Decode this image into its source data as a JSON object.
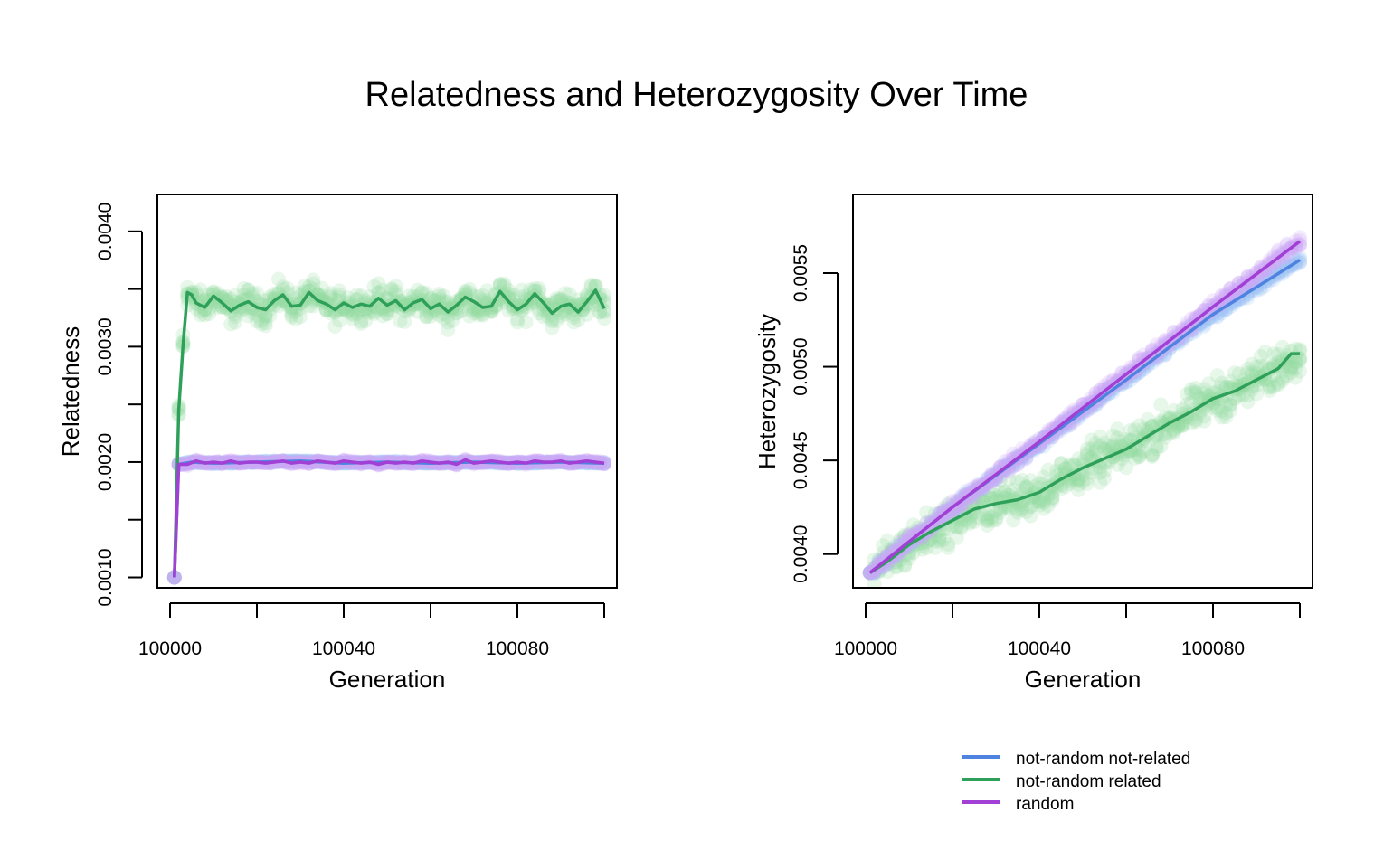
{
  "title": "Relatedness and Heterozygosity Over Time",
  "colors": {
    "not_random_not_related": "#4f83e0",
    "not_random_related": "#2ea05a",
    "random": "#a23fd4",
    "points_not_random_not_related": "#9ec5f5",
    "points_not_random_related": "#93dc9e",
    "points_random": "#cfa8f5"
  },
  "legend": {
    "placement": "bottom-right",
    "items": [
      {
        "label": "not-random not-related",
        "color": "#4f83e0"
      },
      {
        "label": "not-random related",
        "color": "#2ea05a"
      },
      {
        "label": "random",
        "color": "#a23fd4"
      }
    ]
  },
  "chart_data": [
    {
      "type": "line",
      "xlabel": "Generation",
      "ylabel": "Relatedness",
      "xlim": [
        100000,
        100100
      ],
      "ylim": [
        0.00091,
        0.00432
      ],
      "xticks": [
        100000,
        100020,
        100040,
        100060,
        100080,
        100100
      ],
      "xtick_labels": [
        "100000",
        "",
        "100040",
        "",
        "100080",
        ""
      ],
      "yticks": [
        0.001,
        0.0015,
        0.002,
        0.0025,
        0.003,
        0.0035,
        0.004
      ],
      "ytick_labels": [
        "0.0010",
        "",
        "0.0020",
        "",
        "0.0030",
        "",
        "0.0040"
      ],
      "grid": false,
      "series": [
        {
          "name": "not-random related",
          "key": "not_random_related",
          "x": [
            100001,
            100002,
            100003,
            100004,
            100005,
            100006,
            100008,
            100010,
            100012,
            100014,
            100016,
            100018,
            100020,
            100022,
            100024,
            100026,
            100028,
            100030,
            100032,
            100034,
            100036,
            100038,
            100040,
            100042,
            100044,
            100046,
            100048,
            100050,
            100052,
            100054,
            100056,
            100058,
            100060,
            100062,
            100064,
            100066,
            100068,
            100070,
            100072,
            100074,
            100076,
            100078,
            100080,
            100082,
            100084,
            100086,
            100088,
            100090,
            100092,
            100094,
            100096,
            100098,
            100100
          ],
          "y": [
            0.001,
            0.00245,
            0.00302,
            0.00347,
            0.00345,
            0.00338,
            0.00334,
            0.00344,
            0.00338,
            0.00331,
            0.00336,
            0.00339,
            0.00334,
            0.00332,
            0.0034,
            0.00345,
            0.00335,
            0.00336,
            0.00347,
            0.0034,
            0.00337,
            0.00332,
            0.00338,
            0.00334,
            0.00337,
            0.00335,
            0.00342,
            0.00336,
            0.0034,
            0.00332,
            0.00338,
            0.00341,
            0.00333,
            0.00337,
            0.0033,
            0.00336,
            0.00343,
            0.00339,
            0.00334,
            0.00335,
            0.00348,
            0.00339,
            0.00332,
            0.00337,
            0.00346,
            0.00338,
            0.00329,
            0.00335,
            0.00337,
            0.0033,
            0.00339,
            0.00349,
            0.00333
          ]
        },
        {
          "name": "not-random not-related",
          "key": "not_random_not_related",
          "x": [
            100001,
            100002,
            100005,
            100010,
            100020,
            100030,
            100040,
            100050,
            100060,
            100070,
            100080,
            100090,
            100100
          ],
          "y": [
            0.001,
            0.00198,
            0.002,
            0.00199,
            0.002,
            0.00201,
            0.00199,
            0.002,
            0.00199,
            0.002,
            0.00199,
            0.002,
            0.00199
          ]
        },
        {
          "name": "random",
          "key": "random",
          "x": [
            100001,
            100002,
            100004,
            100006,
            100008,
            100010,
            100012,
            100014,
            100016,
            100018,
            100020,
            100022,
            100024,
            100026,
            100028,
            100030,
            100032,
            100034,
            100036,
            100038,
            100040,
            100042,
            100044,
            100046,
            100048,
            100050,
            100052,
            100054,
            100056,
            100058,
            100060,
            100062,
            100064,
            100066,
            100068,
            100070,
            100072,
            100074,
            100076,
            100078,
            100080,
            100082,
            100084,
            100086,
            100088,
            100090,
            100092,
            100094,
            100096,
            100098,
            100100
          ],
          "y": [
            0.001,
            0.00198,
            0.00198,
            0.00201,
            0.00199,
            0.002,
            0.00199,
            0.00201,
            0.00199,
            0.002,
            0.002,
            0.00199,
            0.002,
            0.00201,
            0.00199,
            0.002,
            0.00199,
            0.00201,
            0.002,
            0.00199,
            0.00201,
            0.002,
            0.00199,
            0.002,
            0.00198,
            0.002,
            0.00199,
            0.002,
            0.00199,
            0.00201,
            0.002,
            0.00199,
            0.002,
            0.00198,
            0.00202,
            0.00199,
            0.002,
            0.00201,
            0.002,
            0.00199,
            0.002,
            0.00199,
            0.00201,
            0.002,
            0.002,
            0.00201,
            0.00199,
            0.002,
            0.00201,
            0.002,
            0.00199
          ]
        }
      ]
    },
    {
      "type": "line",
      "xlabel": "Generation",
      "ylabel": "Heterozygosity",
      "xlim": [
        100000,
        100100
      ],
      "ylim": [
        0.00382,
        0.00592
      ],
      "xticks": [
        100000,
        100020,
        100040,
        100060,
        100080,
        100100
      ],
      "xtick_labels": [
        "100000",
        "",
        "100040",
        "",
        "100080",
        ""
      ],
      "yticks": [
        0.004,
        0.0045,
        0.005,
        0.0055
      ],
      "ytick_labels": [
        "0.0040",
        "0.0045",
        "0.0050",
        "0.0055"
      ],
      "grid": false,
      "series": [
        {
          "name": "not-random not-related",
          "key": "not_random_not_related",
          "x": [
            100001,
            100020,
            100040,
            100060,
            100080,
            100100
          ],
          "y": [
            0.0039,
            0.00425,
            0.00459,
            0.00493,
            0.00528,
            0.00557
          ]
        },
        {
          "name": "not-random related",
          "key": "not_random_related",
          "x": [
            100001,
            100005,
            100010,
            100015,
            100020,
            100025,
            100030,
            100035,
            100040,
            100045,
            100050,
            100055,
            100060,
            100065,
            100070,
            100075,
            100080,
            100085,
            100090,
            100095,
            100098,
            100100
          ],
          "y": [
            0.0039,
            0.00396,
            0.00405,
            0.00412,
            0.00418,
            0.00424,
            0.00427,
            0.00429,
            0.00433,
            0.0044,
            0.00446,
            0.00451,
            0.00456,
            0.00463,
            0.0047,
            0.00476,
            0.00483,
            0.00487,
            0.00493,
            0.00499,
            0.00507,
            0.00507
          ]
        },
        {
          "name": "random",
          "key": "random",
          "x": [
            100001,
            100020,
            100040,
            100060,
            100080,
            100100
          ],
          "y": [
            0.0039,
            0.00425,
            0.0046,
            0.00496,
            0.00532,
            0.00567
          ]
        }
      ]
    }
  ]
}
